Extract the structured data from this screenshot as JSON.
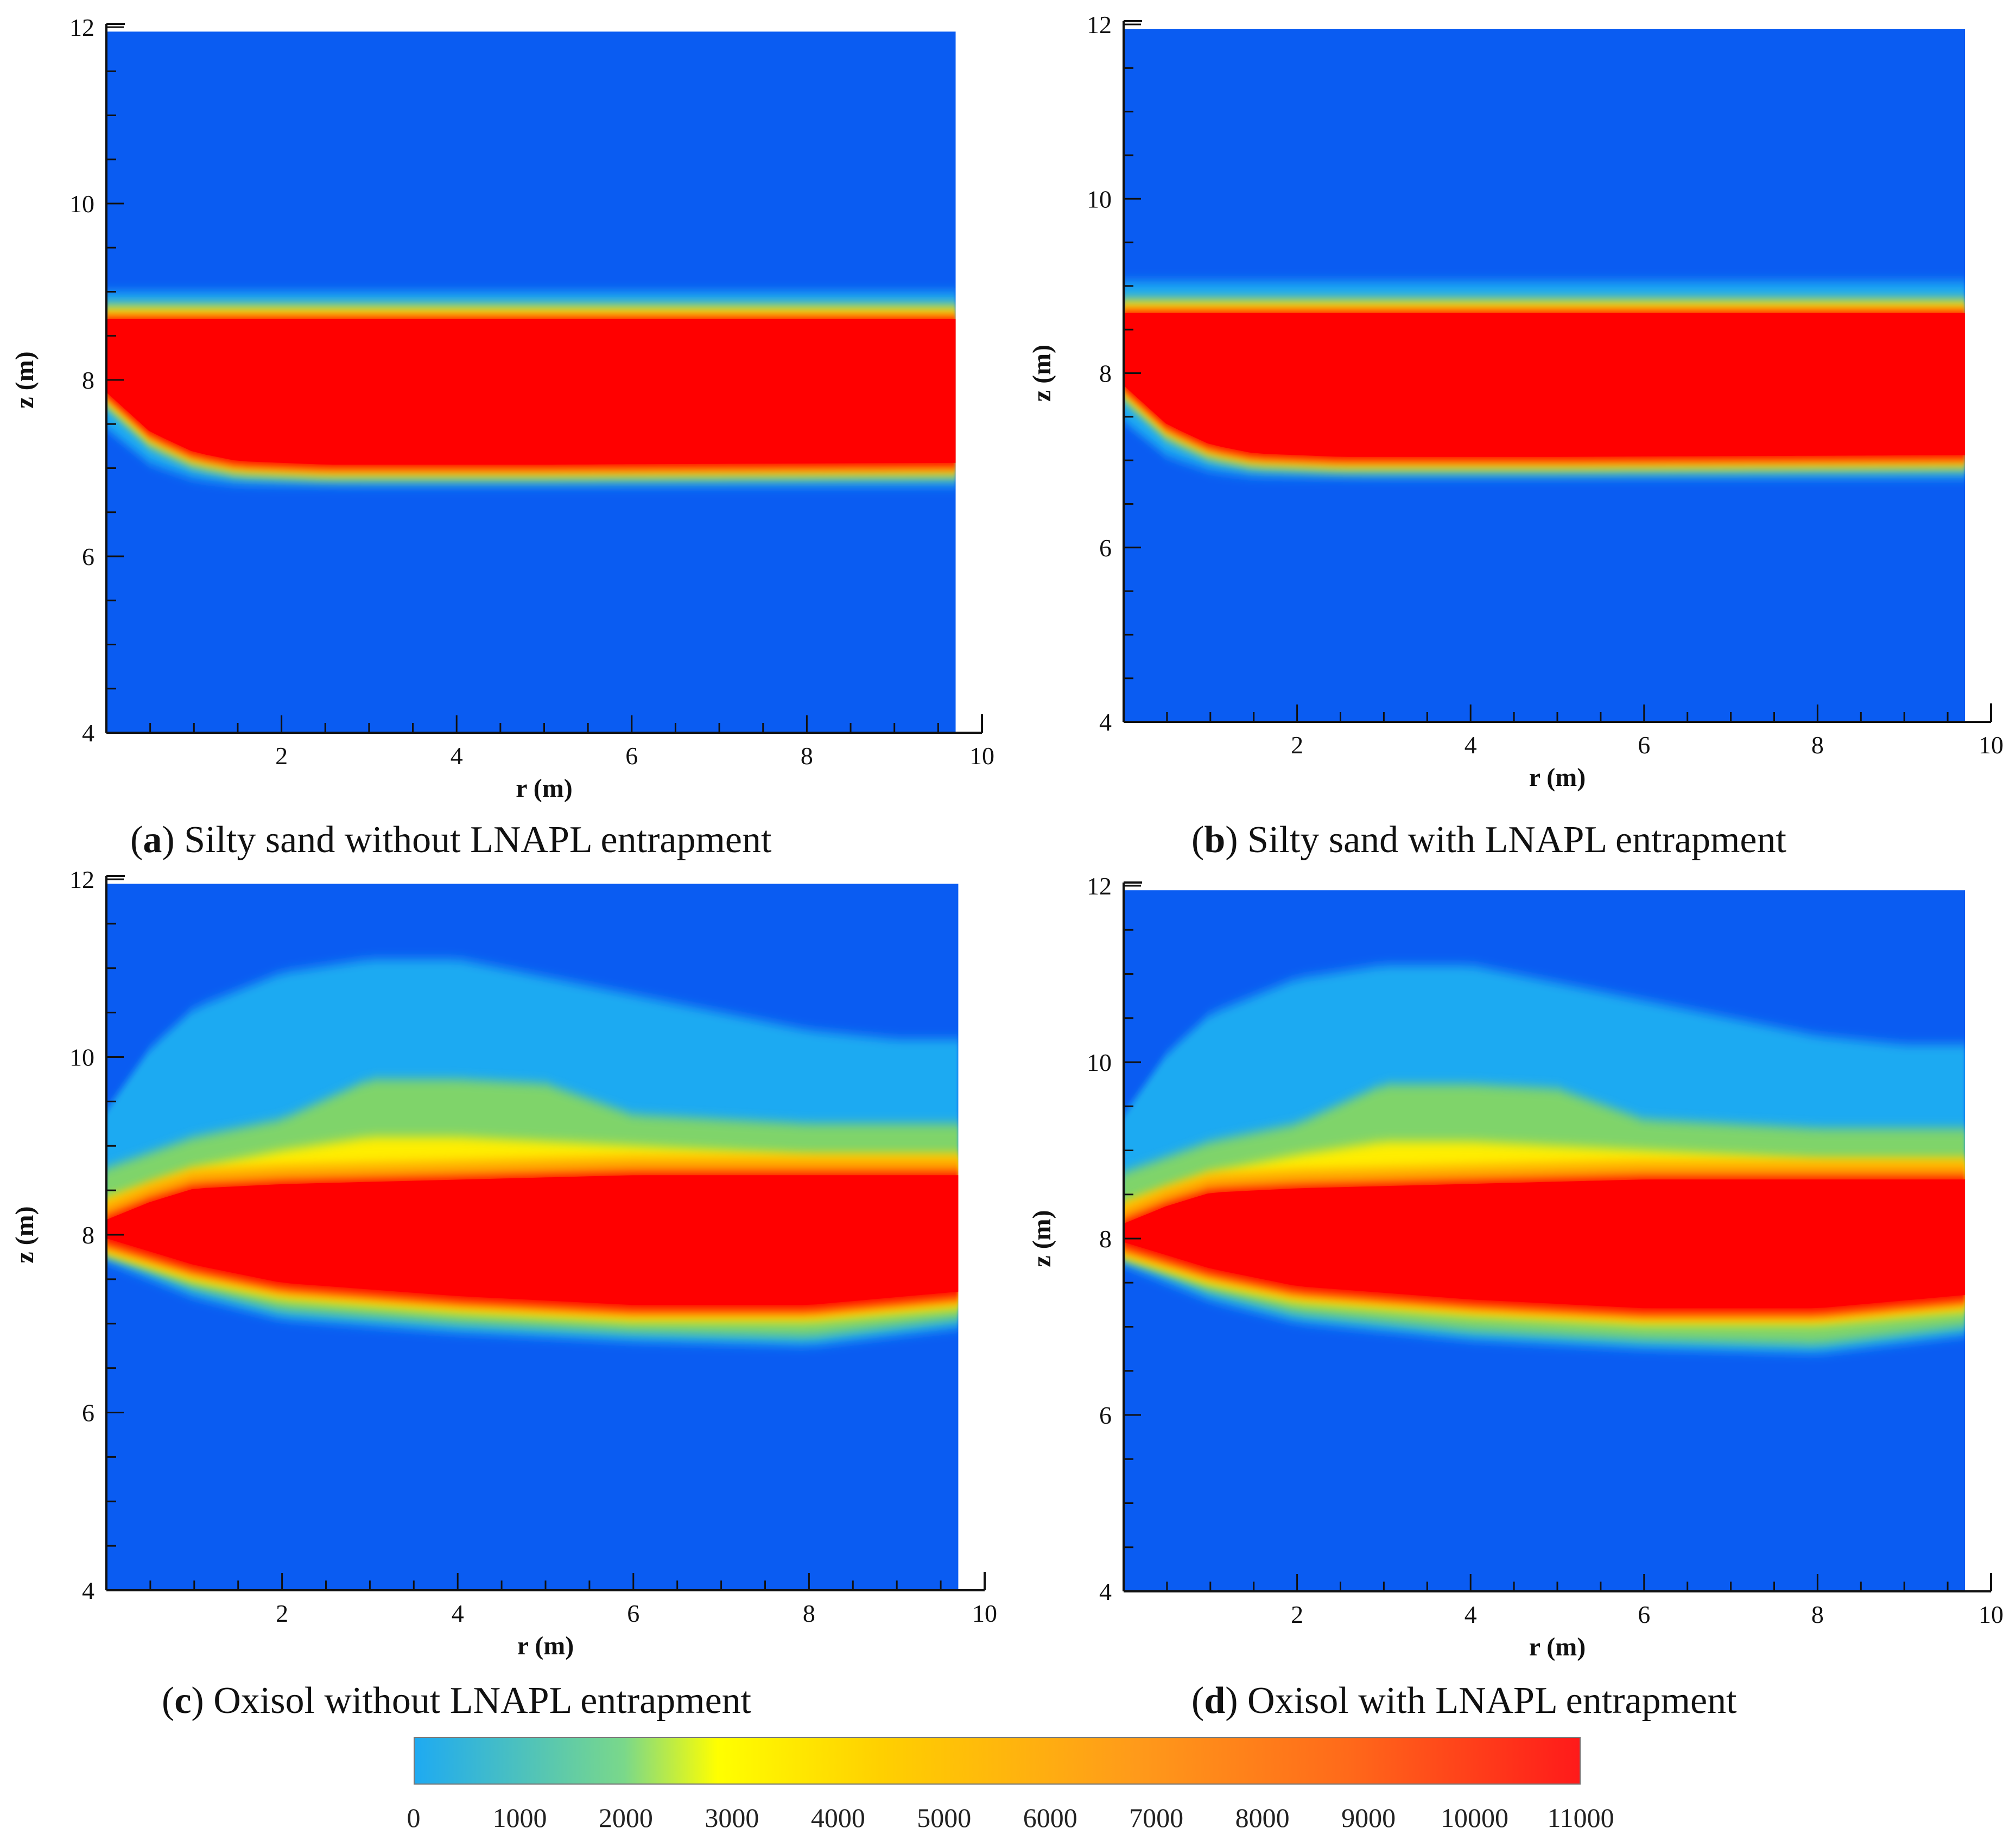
{
  "chart_data": [
    {
      "id": "a",
      "type": "heatmap",
      "caption_letter": "a",
      "caption_text": ") Silty sand without LNAPL entrapment",
      "caption_open": "(",
      "xlabel": "r (m)",
      "ylabel": "z (m)",
      "xlim": [
        0,
        10
      ],
      "ylim": [
        4,
        12
      ],
      "xticks": [
        2,
        4,
        6,
        8,
        10
      ],
      "yticks": [
        4,
        6,
        8,
        10,
        12
      ],
      "domain_r_max": 9.7,
      "domain_z_max": 11.95,
      "plume": {
        "core_top_z": 8.72,
        "core_bottom_z": [
          [
            0,
            7.8
          ],
          [
            0.5,
            7.35
          ],
          [
            1.0,
            7.12
          ],
          [
            1.5,
            7.02
          ],
          [
            2.5,
            6.98
          ],
          [
            5,
            6.98
          ],
          [
            9.7,
            7.0
          ]
        ],
        "upper_fringe_z": 9.0,
        "lower_fringe_z": [
          [
            0,
            7.45
          ],
          [
            0.5,
            7.05
          ],
          [
            1.0,
            6.88
          ],
          [
            1.5,
            6.82
          ],
          [
            3,
            6.8
          ],
          [
            9.7,
            6.8
          ]
        ]
      }
    },
    {
      "id": "b",
      "type": "heatmap",
      "caption_letter": "b",
      "caption_text": ") Silty sand with LNAPL entrapment",
      "caption_open": "(",
      "xlabel": "r (m)",
      "ylabel": "z (m)",
      "xlim": [
        0,
        10
      ],
      "ylim": [
        4,
        12
      ],
      "xticks": [
        2,
        4,
        6,
        8,
        10
      ],
      "yticks": [
        4,
        6,
        8,
        10,
        12
      ],
      "domain_r_max": 9.7,
      "domain_z_max": 11.95,
      "plume": {
        "core_top_z": 8.72,
        "core_bottom_z": [
          [
            0,
            7.8
          ],
          [
            0.5,
            7.35
          ],
          [
            1.0,
            7.12
          ],
          [
            1.5,
            7.02
          ],
          [
            2.5,
            6.98
          ],
          [
            5,
            6.98
          ],
          [
            9.7,
            7.0
          ]
        ],
        "upper_fringe_z": 9.05,
        "lower_fringe_z": [
          [
            0,
            7.45
          ],
          [
            0.5,
            7.05
          ],
          [
            1.0,
            6.88
          ],
          [
            1.5,
            6.82
          ],
          [
            3,
            6.8
          ],
          [
            9.7,
            6.8
          ]
        ]
      }
    },
    {
      "id": "c",
      "type": "heatmap",
      "caption_letter": "c",
      "caption_text": ") Oxisol without LNAPL entrapment",
      "caption_open": "(",
      "xlabel": "r (m)",
      "ylabel": "z (m)",
      "xlim": [
        0,
        10
      ],
      "ylim": [
        4,
        12
      ],
      "xticks": [
        2,
        4,
        6,
        8,
        10
      ],
      "yticks": [
        4,
        6,
        8,
        10,
        12
      ],
      "domain_r_max": 9.7,
      "domain_z_max": 11.95,
      "plume": {
        "core_top_z": [
          [
            0,
            8.2
          ],
          [
            0.5,
            8.4
          ],
          [
            1.0,
            8.55
          ],
          [
            2,
            8.6
          ],
          [
            4,
            8.65
          ],
          [
            6,
            8.7
          ],
          [
            9.7,
            8.7
          ]
        ],
        "core_bottom_z": [
          [
            0,
            7.9
          ],
          [
            1,
            7.6
          ],
          [
            2,
            7.4
          ],
          [
            4,
            7.25
          ],
          [
            6,
            7.15
          ],
          [
            8,
            7.15
          ],
          [
            9.7,
            7.3
          ]
        ],
        "upper_fringe_z": [
          [
            0,
            9.4
          ],
          [
            0.5,
            10.1
          ],
          [
            1,
            10.55
          ],
          [
            2,
            10.95
          ],
          [
            3,
            11.1
          ],
          [
            4,
            11.1
          ],
          [
            5,
            10.9
          ],
          [
            6,
            10.7
          ],
          [
            7,
            10.5
          ],
          [
            8,
            10.3
          ],
          [
            9,
            10.2
          ],
          [
            9.7,
            10.2
          ]
        ],
        "yellow_z": [
          [
            0,
            8.4
          ],
          [
            1,
            8.75
          ],
          [
            2,
            8.95
          ],
          [
            3,
            9.1
          ],
          [
            4,
            9.1
          ],
          [
            5,
            9.05
          ],
          [
            6,
            9.0
          ],
          [
            8,
            8.9
          ],
          [
            9.7,
            8.9
          ]
        ],
        "lower_fringe_z": [
          [
            0,
            7.7
          ],
          [
            1,
            7.3
          ],
          [
            2,
            7.05
          ],
          [
            4,
            6.9
          ],
          [
            6,
            6.8
          ],
          [
            8,
            6.75
          ],
          [
            9.7,
            6.95
          ]
        ]
      }
    },
    {
      "id": "d",
      "type": "heatmap",
      "caption_letter": "d",
      "caption_text": ") Oxisol with LNAPL entrapment",
      "caption_open": "(",
      "xlabel": "r (m)",
      "ylabel": "z (m)",
      "xlim": [
        0,
        10
      ],
      "ylim": [
        4,
        12
      ],
      "xticks": [
        2,
        4,
        6,
        8,
        10
      ],
      "yticks": [
        4,
        6,
        8,
        10,
        12
      ],
      "domain_r_max": 9.7,
      "domain_z_max": 11.95,
      "plume": {
        "core_top_z": [
          [
            0,
            8.2
          ],
          [
            0.5,
            8.4
          ],
          [
            1.0,
            8.55
          ],
          [
            2,
            8.6
          ],
          [
            4,
            8.65
          ],
          [
            6,
            8.7
          ],
          [
            9.7,
            8.7
          ]
        ],
        "core_bottom_z": [
          [
            0,
            7.9
          ],
          [
            1,
            7.6
          ],
          [
            2,
            7.4
          ],
          [
            4,
            7.25
          ],
          [
            6,
            7.15
          ],
          [
            8,
            7.15
          ],
          [
            9.7,
            7.3
          ]
        ],
        "upper_fringe_z": [
          [
            0,
            9.4
          ],
          [
            0.5,
            10.1
          ],
          [
            1,
            10.55
          ],
          [
            2,
            10.95
          ],
          [
            3,
            11.1
          ],
          [
            4,
            11.1
          ],
          [
            5,
            10.9
          ],
          [
            6,
            10.7
          ],
          [
            7,
            10.5
          ],
          [
            8,
            10.3
          ],
          [
            9,
            10.2
          ],
          [
            9.7,
            10.2
          ]
        ],
        "yellow_z": [
          [
            0,
            8.4
          ],
          [
            1,
            8.75
          ],
          [
            2,
            8.95
          ],
          [
            3,
            9.1
          ],
          [
            4,
            9.1
          ],
          [
            5,
            9.05
          ],
          [
            6,
            9.0
          ],
          [
            8,
            8.9
          ],
          [
            9.7,
            8.9
          ]
        ],
        "lower_fringe_z": [
          [
            0,
            7.7
          ],
          [
            1,
            7.3
          ],
          [
            2,
            7.05
          ],
          [
            4,
            6.85
          ],
          [
            6,
            6.75
          ],
          [
            8,
            6.7
          ],
          [
            9.7,
            6.9
          ]
        ]
      }
    }
  ],
  "colorbar": {
    "min": 0,
    "max": 11000,
    "labels": [
      "0",
      "1000",
      "2000",
      "3000",
      "4000",
      "5000",
      "6000",
      "7000",
      "8000",
      "9000",
      "10000",
      "11000"
    ],
    "colors": [
      "#1eaaf2",
      "#ffff00",
      "#ff9a1a",
      "#ff1a1a"
    ]
  },
  "colors": {
    "background_blue": "#0a5cf2",
    "fringe_cyan": "#1eaaf2",
    "yellow": "#ffee00",
    "orange": "#ffa800",
    "core_red": "#ff0000"
  }
}
